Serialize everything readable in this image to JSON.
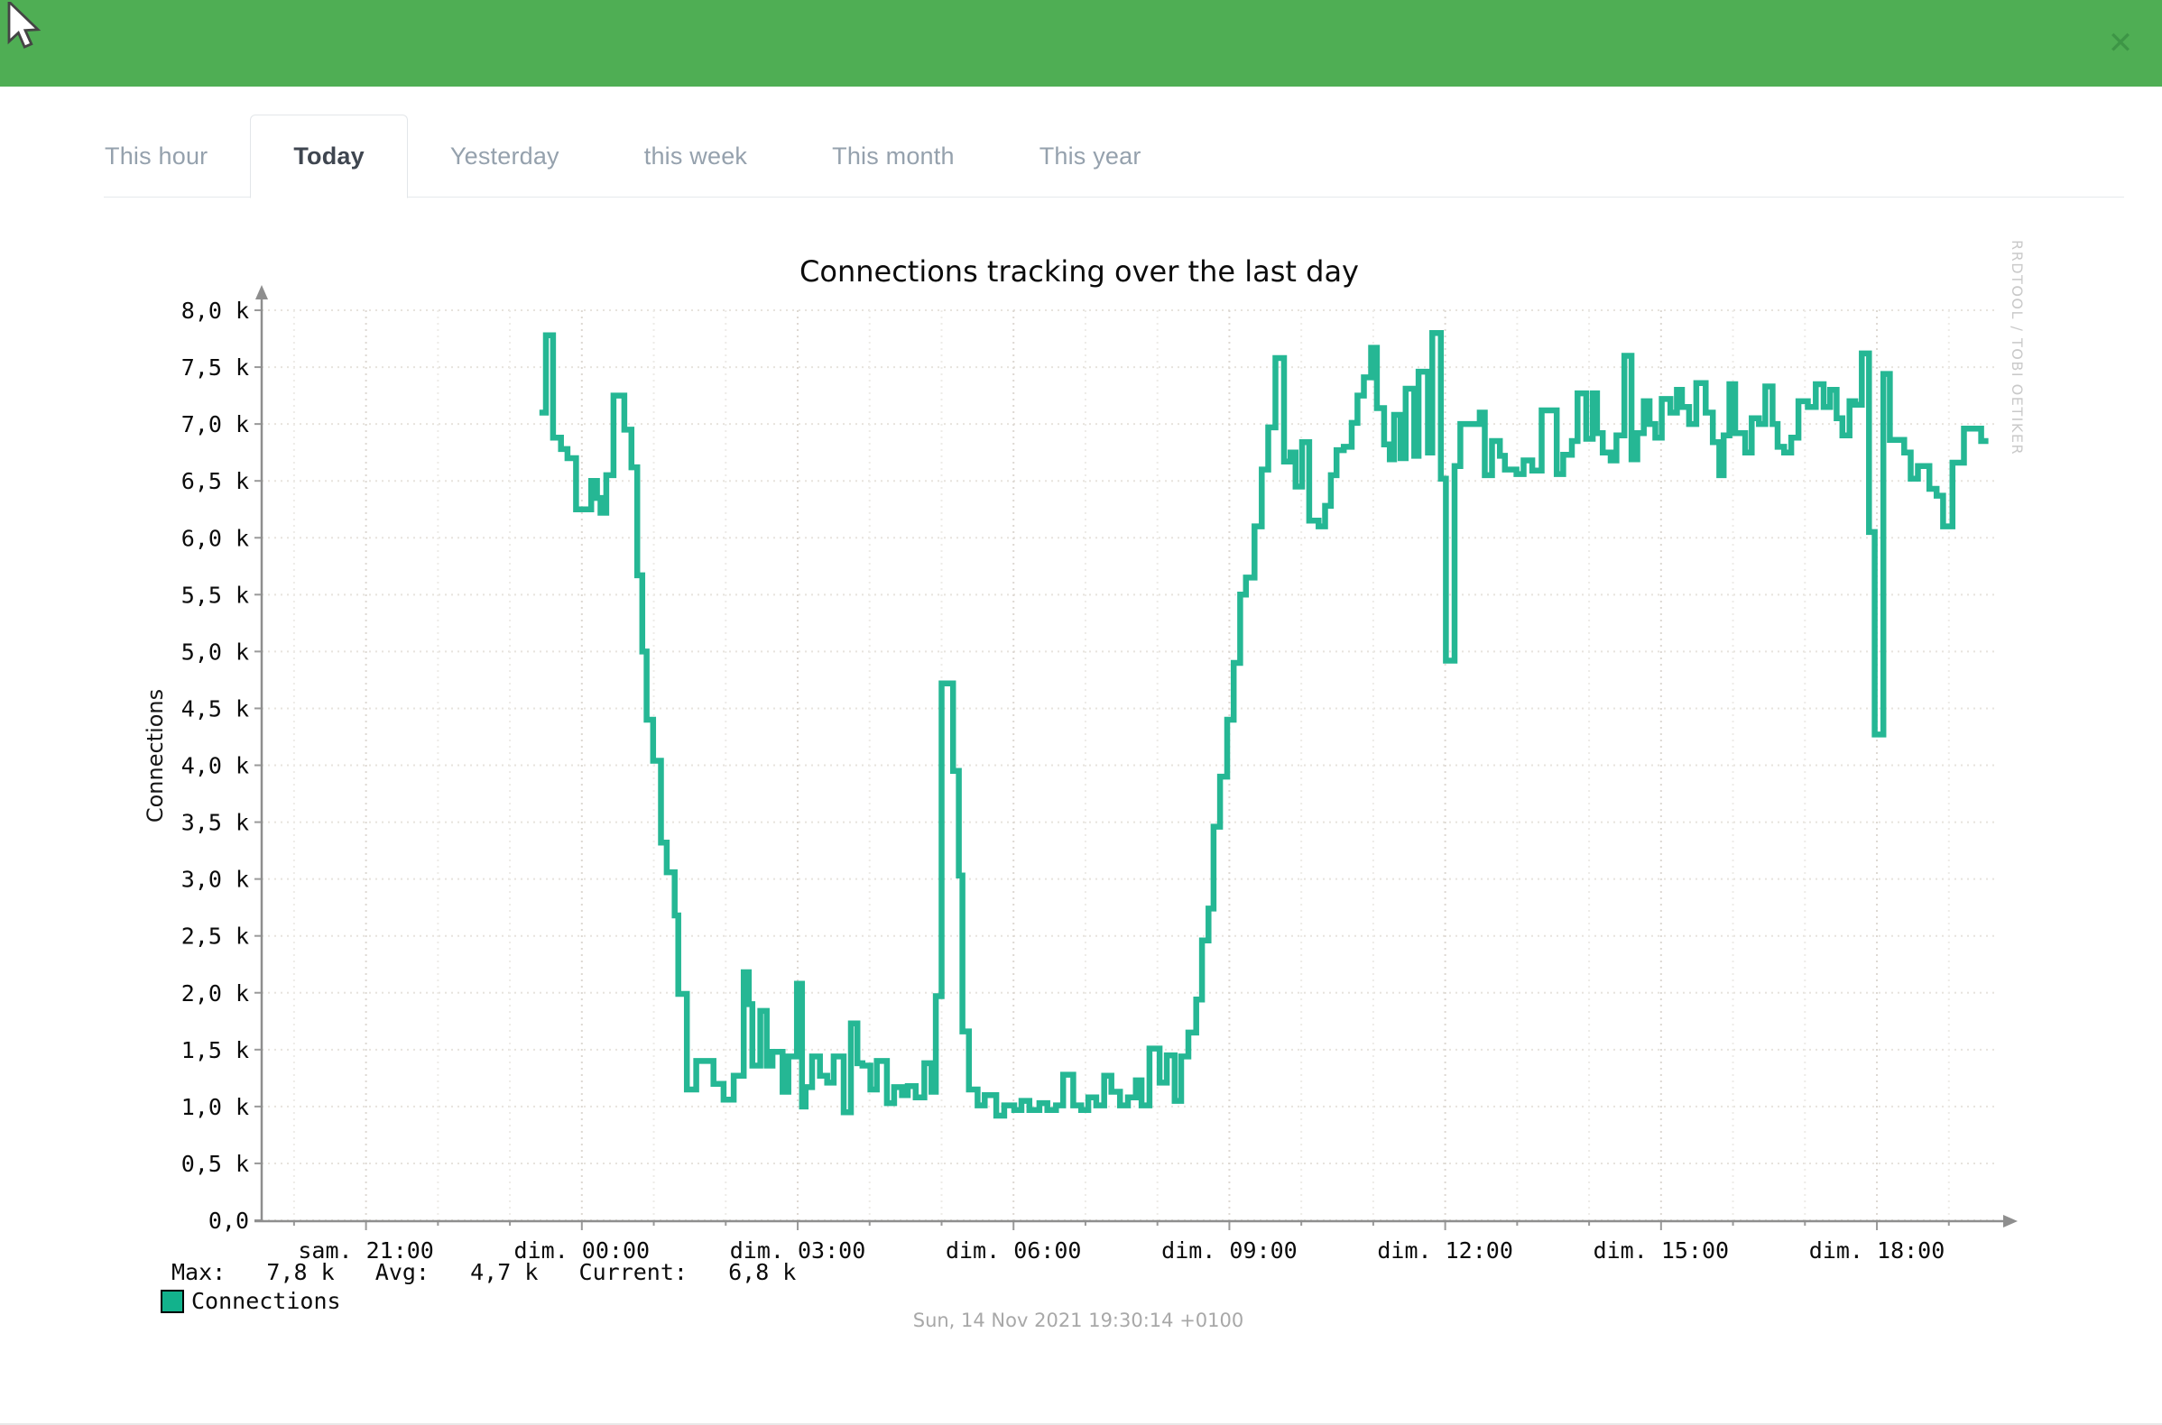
{
  "window": {
    "header_color": "#4fae54",
    "close_icon": "✕"
  },
  "tabs": [
    {
      "label": "This hour",
      "active": false
    },
    {
      "label": "Today",
      "active": true
    },
    {
      "label": "Yesterday",
      "active": false
    },
    {
      "label": "this week",
      "active": false
    },
    {
      "label": "This month",
      "active": false
    },
    {
      "label": "This year",
      "active": false
    }
  ],
  "chart": {
    "title": "Connections tracking over the last day",
    "y_axis_label": "Connections",
    "watermark": "RRDTOOL / TOBI OETIKER",
    "stats_text": "Max:   7,8 k   Avg:   4,7 k   Current:   6,8 k",
    "legend_label": "Connections",
    "legend_swatch_color": "#12b28c",
    "line_color": "#25b794",
    "timestamp": "Sun, 14 Nov 2021 19:30:14 +0100"
  },
  "chart_data": {
    "type": "line",
    "style": "step-after",
    "title": "Connections tracking over the last day",
    "ylabel": "Connections",
    "y_unit": "k (thousands of connections)",
    "ylim": [
      0,
      8
    ],
    "y_ticks": [
      {
        "v": 0.0,
        "label": "0,0"
      },
      {
        "v": 0.5,
        "label": "0,5 k"
      },
      {
        "v": 1.0,
        "label": "1,0 k"
      },
      {
        "v": 1.5,
        "label": "1,5 k"
      },
      {
        "v": 2.0,
        "label": "2,0 k"
      },
      {
        "v": 2.5,
        "label": "2,5 k"
      },
      {
        "v": 3.0,
        "label": "3,0 k"
      },
      {
        "v": 3.5,
        "label": "3,5 k"
      },
      {
        "v": 4.0,
        "label": "4,0 k"
      },
      {
        "v": 4.5,
        "label": "4,5 k"
      },
      {
        "v": 5.0,
        "label": "5,0 k"
      },
      {
        "v": 5.5,
        "label": "5,5 k"
      },
      {
        "v": 6.0,
        "label": "6,0 k"
      },
      {
        "v": 6.5,
        "label": "6,5 k"
      },
      {
        "v": 7.0,
        "label": "7,0 k"
      },
      {
        "v": 7.5,
        "label": "7,5 k"
      },
      {
        "v": 8.0,
        "label": "8,0 k"
      }
    ],
    "x_unit": "hours relative to dim. 00:00 (Sunday midnight)",
    "xlim": [
      -4.45,
      19.63
    ],
    "x_ticks": [
      {
        "t": -3,
        "label": "sam. 21:00"
      },
      {
        "t": 0,
        "label": "dim. 00:00"
      },
      {
        "t": 3,
        "label": "dim. 03:00"
      },
      {
        "t": 6,
        "label": "dim. 06:00"
      },
      {
        "t": 9,
        "label": "dim. 09:00"
      },
      {
        "t": 12,
        "label": "dim. 12:00"
      },
      {
        "t": 15,
        "label": "dim. 15:00"
      },
      {
        "t": 18,
        "label": "dim. 18:00"
      }
    ],
    "stats": {
      "max_k": 7.8,
      "avg_k": 4.7,
      "current_k": 6.8
    },
    "series": [
      {
        "name": "Connections",
        "color": "#25b794",
        "end_t": 19.55,
        "points": [
          [
            -0.59,
            7.1
          ],
          [
            -0.5,
            7.78
          ],
          [
            -0.4,
            6.88
          ],
          [
            -0.29,
            6.78
          ],
          [
            -0.2,
            6.7
          ],
          [
            -0.08,
            6.25
          ],
          [
            0.13,
            6.5
          ],
          [
            0.21,
            6.35
          ],
          [
            0.26,
            6.22
          ],
          [
            0.34,
            6.55
          ],
          [
            0.44,
            7.25
          ],
          [
            0.59,
            6.95
          ],
          [
            0.69,
            6.62
          ],
          [
            0.77,
            5.67
          ],
          [
            0.84,
            5.0
          ],
          [
            0.9,
            4.4
          ],
          [
            0.99,
            4.04
          ],
          [
            1.1,
            3.32
          ],
          [
            1.18,
            3.06
          ],
          [
            1.29,
            2.68
          ],
          [
            1.34,
            1.99
          ],
          [
            1.46,
            1.15
          ],
          [
            1.59,
            1.4
          ],
          [
            1.83,
            1.2
          ],
          [
            1.97,
            1.06
          ],
          [
            2.11,
            1.27
          ],
          [
            2.25,
            2.18
          ],
          [
            2.32,
            1.9
          ],
          [
            2.37,
            1.36
          ],
          [
            2.48,
            1.84
          ],
          [
            2.57,
            1.36
          ],
          [
            2.65,
            1.48
          ],
          [
            2.79,
            1.13
          ],
          [
            2.87,
            1.44
          ],
          [
            2.99,
            2.08
          ],
          [
            3.06,
            1.0
          ],
          [
            3.11,
            1.17
          ],
          [
            3.2,
            1.44
          ],
          [
            3.31,
            1.27
          ],
          [
            3.41,
            1.21
          ],
          [
            3.5,
            1.44
          ],
          [
            3.64,
            0.95
          ],
          [
            3.74,
            1.73
          ],
          [
            3.83,
            1.38
          ],
          [
            3.9,
            1.36
          ],
          [
            4.01,
            1.15
          ],
          [
            4.1,
            1.4
          ],
          [
            4.24,
            1.03
          ],
          [
            4.34,
            1.17
          ],
          [
            4.45,
            1.1
          ],
          [
            4.53,
            1.18
          ],
          [
            4.64,
            1.08
          ],
          [
            4.76,
            1.38
          ],
          [
            4.86,
            1.13
          ],
          [
            4.92,
            1.97
          ],
          [
            5.0,
            4.72
          ],
          [
            5.16,
            3.95
          ],
          [
            5.24,
            3.03
          ],
          [
            5.29,
            1.66
          ],
          [
            5.38,
            1.15
          ],
          [
            5.5,
            1.01
          ],
          [
            5.6,
            1.1
          ],
          [
            5.76,
            0.92
          ],
          [
            5.87,
            1.01
          ],
          [
            6.01,
            0.97
          ],
          [
            6.11,
            1.05
          ],
          [
            6.22,
            0.97
          ],
          [
            6.36,
            1.03
          ],
          [
            6.47,
            0.97
          ],
          [
            6.59,
            1.01
          ],
          [
            6.69,
            1.28
          ],
          [
            6.83,
            1.01
          ],
          [
            6.94,
            0.97
          ],
          [
            7.04,
            1.08
          ],
          [
            7.15,
            1.01
          ],
          [
            7.26,
            1.27
          ],
          [
            7.36,
            1.13
          ],
          [
            7.48,
            1.01
          ],
          [
            7.59,
            1.08
          ],
          [
            7.7,
            1.23
          ],
          [
            7.78,
            1.01
          ],
          [
            7.89,
            1.51
          ],
          [
            8.03,
            1.21
          ],
          [
            8.13,
            1.45
          ],
          [
            8.24,
            1.05
          ],
          [
            8.33,
            1.44
          ],
          [
            8.43,
            1.65
          ],
          [
            8.54,
            1.94
          ],
          [
            8.62,
            2.46
          ],
          [
            8.71,
            2.74
          ],
          [
            8.78,
            3.46
          ],
          [
            8.87,
            3.9
          ],
          [
            8.97,
            4.4
          ],
          [
            9.06,
            4.9
          ],
          [
            9.15,
            5.5
          ],
          [
            9.23,
            5.65
          ],
          [
            9.35,
            6.1
          ],
          [
            9.45,
            6.6
          ],
          [
            9.54,
            6.97
          ],
          [
            9.64,
            7.58
          ],
          [
            9.76,
            6.67
          ],
          [
            9.85,
            6.75
          ],
          [
            9.92,
            6.45
          ],
          [
            10.01,
            6.84
          ],
          [
            10.11,
            6.15
          ],
          [
            10.24,
            6.1
          ],
          [
            10.33,
            6.28
          ],
          [
            10.41,
            6.55
          ],
          [
            10.49,
            6.77
          ],
          [
            10.59,
            6.8
          ],
          [
            10.7,
            7.01
          ],
          [
            10.78,
            7.25
          ],
          [
            10.87,
            7.41
          ],
          [
            10.97,
            7.67
          ],
          [
            11.05,
            7.14
          ],
          [
            11.15,
            6.82
          ],
          [
            11.23,
            6.69
          ],
          [
            11.29,
            7.08
          ],
          [
            11.38,
            6.7
          ],
          [
            11.45,
            7.31
          ],
          [
            11.57,
            6.72
          ],
          [
            11.63,
            7.46
          ],
          [
            11.76,
            6.75
          ],
          [
            11.82,
            7.8
          ],
          [
            11.94,
            6.52
          ],
          [
            12.01,
            4.92
          ],
          [
            12.13,
            6.63
          ],
          [
            12.21,
            7.0
          ],
          [
            12.48,
            7.1
          ],
          [
            12.55,
            6.55
          ],
          [
            12.65,
            6.85
          ],
          [
            12.76,
            6.72
          ],
          [
            12.83,
            6.6
          ],
          [
            12.99,
            6.56
          ],
          [
            13.09,
            6.68
          ],
          [
            13.21,
            6.59
          ],
          [
            13.34,
            7.12
          ],
          [
            13.55,
            6.56
          ],
          [
            13.64,
            6.73
          ],
          [
            13.76,
            6.85
          ],
          [
            13.84,
            7.27
          ],
          [
            13.96,
            6.87
          ],
          [
            14.05,
            7.27
          ],
          [
            14.11,
            6.92
          ],
          [
            14.19,
            6.75
          ],
          [
            14.3,
            6.68
          ],
          [
            14.38,
            6.9
          ],
          [
            14.49,
            7.6
          ],
          [
            14.59,
            6.69
          ],
          [
            14.67,
            6.92
          ],
          [
            14.76,
            7.2
          ],
          [
            14.84,
            7.0
          ],
          [
            14.92,
            6.88
          ],
          [
            15.01,
            7.22
          ],
          [
            15.13,
            7.1
          ],
          [
            15.22,
            7.3
          ],
          [
            15.29,
            7.15
          ],
          [
            15.39,
            7.0
          ],
          [
            15.49,
            7.36
          ],
          [
            15.62,
            7.1
          ],
          [
            15.72,
            6.84
          ],
          [
            15.81,
            6.55
          ],
          [
            15.87,
            6.9
          ],
          [
            15.95,
            7.35
          ],
          [
            16.03,
            6.92
          ],
          [
            16.17,
            6.75
          ],
          [
            16.26,
            7.05
          ],
          [
            16.36,
            7.0
          ],
          [
            16.45,
            7.33
          ],
          [
            16.55,
            7.0
          ],
          [
            16.62,
            6.8
          ],
          [
            16.71,
            6.75
          ],
          [
            16.81,
            6.88
          ],
          [
            16.91,
            7.2
          ],
          [
            17.04,
            7.15
          ],
          [
            17.15,
            7.35
          ],
          [
            17.26,
            7.15
          ],
          [
            17.35,
            7.3
          ],
          [
            17.44,
            7.05
          ],
          [
            17.52,
            6.9
          ],
          [
            17.62,
            7.2
          ],
          [
            17.7,
            7.17
          ],
          [
            17.79,
            7.62
          ],
          [
            17.89,
            6.05
          ],
          [
            17.97,
            4.27
          ],
          [
            18.09,
            7.44
          ],
          [
            18.18,
            6.86
          ],
          [
            18.38,
            6.75
          ],
          [
            18.47,
            6.52
          ],
          [
            18.57,
            6.63
          ],
          [
            18.73,
            6.43
          ],
          [
            18.83,
            6.37
          ],
          [
            18.92,
            6.1
          ],
          [
            19.05,
            6.66
          ],
          [
            19.21,
            6.96
          ],
          [
            19.45,
            6.85
          ]
        ]
      }
    ]
  }
}
